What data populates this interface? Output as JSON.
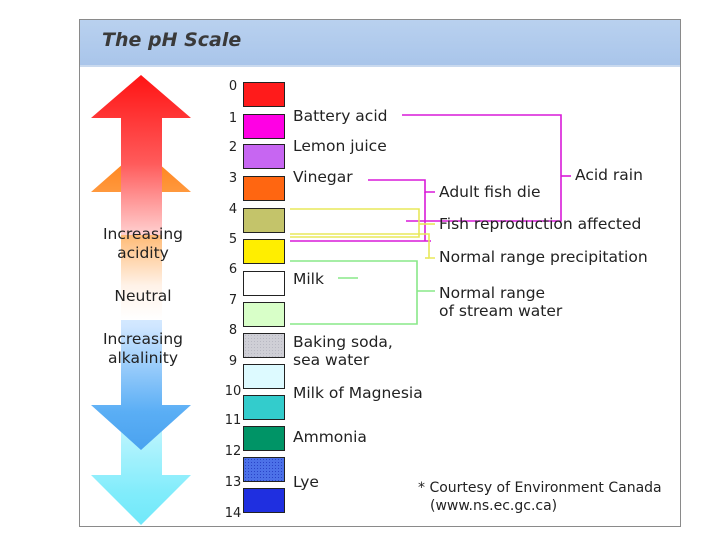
{
  "title": "The pH Scale",
  "scale": [
    {
      "ph": "0",
      "color": "#ff1b1b"
    },
    {
      "ph": "1",
      "color": "#ff00e4"
    },
    {
      "ph": "2",
      "color": "#c766f2"
    },
    {
      "ph": "3",
      "color": "#ff6611"
    },
    {
      "ph": "4",
      "color": "#c4c46a"
    },
    {
      "ph": "5",
      "color": "#ffee00"
    },
    {
      "ph": "6",
      "color": "#ffffff"
    },
    {
      "ph": "7",
      "color": "#d8ffc8"
    },
    {
      "ph": "8",
      "color": "#cfcfd6"
    },
    {
      "ph": "9",
      "color": "#ddfaff"
    },
    {
      "ph": "10",
      "color": "#33cccc"
    },
    {
      "ph": "11",
      "color": "#009466"
    },
    {
      "ph": "12",
      "color": "#4c71e8"
    },
    {
      "ph": "13",
      "color": "#1f2fe0"
    },
    {
      "ph": "14",
      "color": ""
    }
  ],
  "substances": {
    "battery_acid": "Battery acid",
    "lemon_juice": "Lemon juice",
    "vinegar": "Vinegar",
    "milk": "Milk",
    "baking_soda_1": "Baking soda,",
    "baking_soda_2": "sea water",
    "milk_of_magnesia": "Milk of Magnesia",
    "ammonia": "Ammonia",
    "lye": "Lye"
  },
  "side_labels": {
    "acidity_1": "Increasing",
    "acidity_2": "acidity",
    "neutral": "Neutral",
    "alkalinity_1": "Increasing",
    "alkalinity_2": "alkalinity"
  },
  "annotations": {
    "acid_rain": "Acid rain",
    "adult_fish_die": "Adult fish die",
    "fish_reproduction": "Fish reproduction affected",
    "normal_precipitation": "Normal range precipitation",
    "stream_water_1": "Normal range",
    "stream_water_2": "of stream water"
  },
  "courtesy": {
    "line1": "* Courtesy of Environment Canada",
    "line2": "(www.ns.ec.gc.ca)"
  },
  "colors": {
    "acid_rain_line": "#d81ad8",
    "fish_line": "#e8e85a",
    "stream_line": "#88e888",
    "acid_arrow_top": "#ff1a1a",
    "acid_arrow_mid": "#ff9a1a",
    "alkaline_arrow": "#66bbff",
    "alkaline_arrow_light": "#88eeff"
  }
}
